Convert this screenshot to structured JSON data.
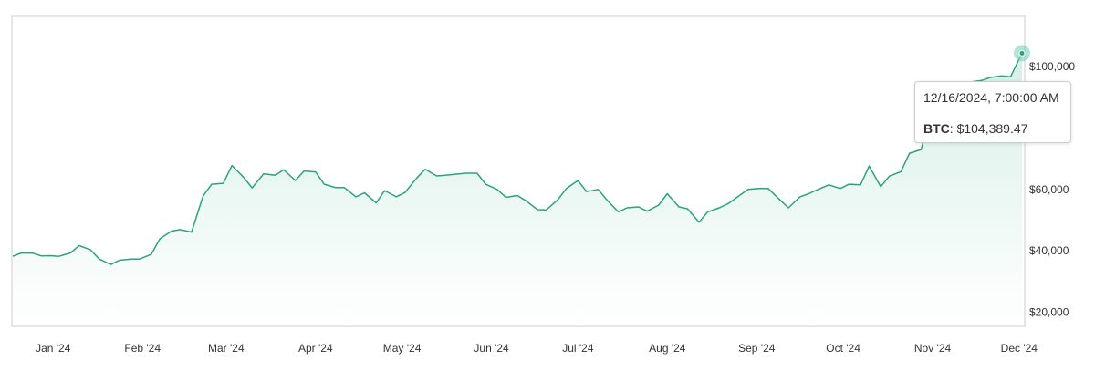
{
  "chart_data": {
    "type": "area",
    "title": "",
    "xlabel": "",
    "ylabel": "",
    "x_tick_labels": [
      "Jan '24",
      "Feb '24",
      "Mar '24",
      "Apr '24",
      "May '24",
      "Jun '24",
      "Jul '24",
      "Aug '24",
      "Sep '24",
      "Oct '24",
      "Nov '24",
      "Dec '24"
    ],
    "y_tick_labels": [
      "$20,000",
      "$40,000",
      "$60,000",
      "$100,000"
    ],
    "y_tick_values": [
      20000,
      40000,
      60000,
      100000
    ],
    "xlim": [
      "2024-01-01",
      "2024-12-16"
    ],
    "ylim": [
      15000,
      115000
    ],
    "grid": false,
    "legend": "none",
    "colors": {
      "line": "#2aa37f",
      "fill_top": "#d6efe6",
      "fill_bottom": "#ffffff",
      "marker": "#7ed1b8",
      "axis_border": "#cccccc"
    },
    "series": [
      {
        "name": "BTC",
        "points": [
          [
            "2024-01-01",
            38200
          ],
          [
            "2024-01-04",
            39300
          ],
          [
            "2024-01-08",
            39200
          ],
          [
            "2024-01-11",
            38300
          ],
          [
            "2024-01-14",
            38400
          ],
          [
            "2024-01-17",
            38200
          ],
          [
            "2024-01-21",
            39300
          ],
          [
            "2024-01-24",
            41700
          ],
          [
            "2024-01-28",
            40300
          ],
          [
            "2024-01-31",
            37300
          ],
          [
            "2024-02-04",
            35500
          ],
          [
            "2024-02-07",
            36900
          ],
          [
            "2024-02-11",
            37300
          ],
          [
            "2024-02-14",
            37300
          ],
          [
            "2024-02-18",
            38800
          ],
          [
            "2024-02-21",
            43900
          ],
          [
            "2024-02-25",
            46400
          ],
          [
            "2024-02-28",
            46900
          ],
          [
            "2024-03-03",
            46100
          ],
          [
            "2024-03-07",
            57900
          ],
          [
            "2024-03-10",
            61700
          ],
          [
            "2024-03-14",
            62000
          ],
          [
            "2024-03-17",
            67800
          ],
          [
            "2024-03-21",
            64000
          ],
          [
            "2024-03-24",
            60500
          ],
          [
            "2024-03-28",
            65100
          ],
          [
            "2024-04-01",
            64600
          ],
          [
            "2024-04-04",
            66400
          ],
          [
            "2024-04-08",
            62900
          ],
          [
            "2024-04-11",
            66000
          ],
          [
            "2024-04-15",
            65700
          ],
          [
            "2024-04-18",
            61700
          ],
          [
            "2024-04-22",
            60600
          ],
          [
            "2024-04-25",
            60600
          ],
          [
            "2024-04-29",
            57600
          ],
          [
            "2024-05-02",
            58900
          ],
          [
            "2024-05-06",
            55600
          ],
          [
            "2024-05-09",
            59600
          ],
          [
            "2024-05-13",
            57600
          ],
          [
            "2024-05-16",
            59000
          ],
          [
            "2024-05-20",
            63600
          ],
          [
            "2024-05-23",
            66600
          ],
          [
            "2024-05-27",
            64400
          ],
          [
            "2024-05-30",
            64600
          ],
          [
            "2024-06-03",
            65000
          ],
          [
            "2024-06-06",
            65300
          ],
          [
            "2024-06-10",
            65300
          ],
          [
            "2024-06-13",
            61700
          ],
          [
            "2024-06-17",
            60000
          ],
          [
            "2024-06-20",
            57400
          ],
          [
            "2024-06-24",
            58000
          ],
          [
            "2024-06-27",
            56300
          ],
          [
            "2024-07-01",
            53400
          ],
          [
            "2024-07-04",
            53300
          ],
          [
            "2024-07-08",
            56600
          ],
          [
            "2024-07-11",
            60300
          ],
          [
            "2024-07-15",
            62900
          ],
          [
            "2024-07-18",
            59300
          ],
          [
            "2024-07-22",
            60000
          ],
          [
            "2024-07-25",
            56600
          ],
          [
            "2024-07-29",
            52700
          ],
          [
            "2024-08-01",
            54000
          ],
          [
            "2024-08-05",
            54300
          ],
          [
            "2024-08-08",
            52900
          ],
          [
            "2024-08-12",
            54900
          ],
          [
            "2024-08-15",
            58600
          ],
          [
            "2024-08-19",
            54300
          ],
          [
            "2024-08-22",
            53700
          ],
          [
            "2024-08-26",
            49300
          ],
          [
            "2024-08-29",
            52700
          ],
          [
            "2024-09-02",
            54000
          ],
          [
            "2024-09-05",
            55300
          ],
          [
            "2024-09-09",
            58000
          ],
          [
            "2024-09-12",
            60000
          ],
          [
            "2024-09-16",
            60300
          ],
          [
            "2024-09-19",
            60300
          ],
          [
            "2024-09-23",
            56600
          ],
          [
            "2024-09-26",
            54000
          ],
          [
            "2024-09-30",
            57600
          ],
          [
            "2024-10-03",
            58600
          ],
          [
            "2024-10-07",
            60300
          ],
          [
            "2024-10-10",
            61500
          ],
          [
            "2024-10-14",
            60300
          ],
          [
            "2024-10-17",
            61700
          ],
          [
            "2024-10-21",
            61500
          ],
          [
            "2024-10-24",
            67600
          ],
          [
            "2024-10-28",
            60900
          ],
          [
            "2024-10-31",
            64300
          ],
          [
            "2024-11-04",
            65800
          ],
          [
            "2024-11-07",
            71800
          ],
          [
            "2024-11-11",
            73000
          ],
          [
            "2024-11-14",
            83000
          ],
          [
            "2024-11-18",
            88000
          ],
          [
            "2024-11-21",
            90500
          ],
          [
            "2024-11-25",
            94500
          ],
          [
            "2024-11-28",
            95000
          ],
          [
            "2024-12-02",
            95500
          ],
          [
            "2024-12-05",
            96500
          ],
          [
            "2024-12-09",
            97000
          ],
          [
            "2024-12-12",
            96700
          ],
          [
            "2024-12-16",
            104389.47
          ]
        ]
      }
    ],
    "tooltip": {
      "timestamp": "12/16/2024, 7:00:00 AM",
      "series_label": "BTC",
      "value_label": "$104,389.47",
      "date": "2024-12-16",
      "value": 104389.47
    }
  }
}
